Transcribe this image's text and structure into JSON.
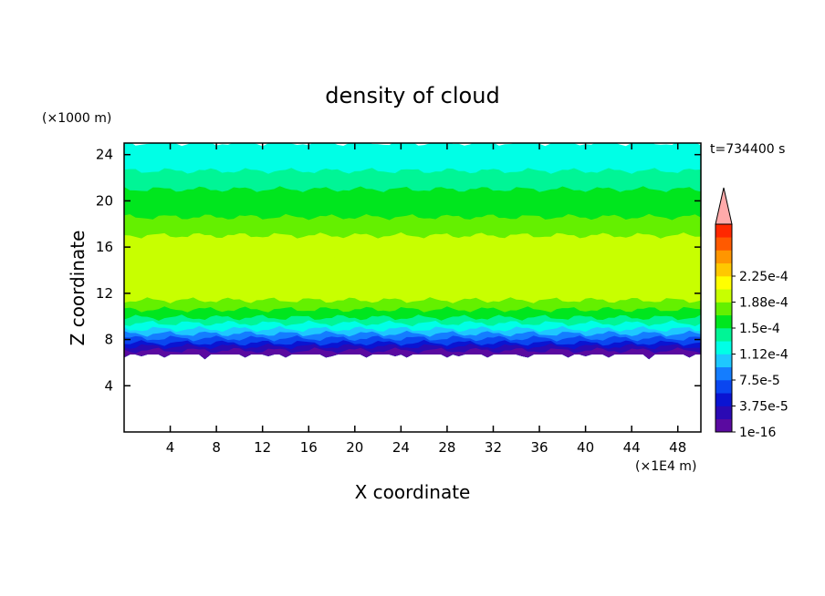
{
  "chart_data": {
    "type": "heatmap",
    "title": "density of cloud",
    "xlabel": "X coordinate",
    "ylabel": "Z coordinate",
    "x_unit": "(×1E4 m)",
    "y_unit": "(×1000 m)",
    "time_label": "t=734400 s",
    "xlim": [
      0,
      50
    ],
    "ylim": [
      0,
      25
    ],
    "x_ticks": [
      4,
      8,
      12,
      16,
      20,
      24,
      28,
      32,
      36,
      40,
      44,
      48
    ],
    "y_ticks": [
      4,
      8,
      12,
      16,
      20,
      24
    ],
    "colorbar": {
      "levels": [
        1e-16,
        1.875e-05,
        3.75e-05,
        5.625e-05,
        7.5e-05,
        9.375e-05,
        0.0001125,
        0.00013125,
        0.00015,
        0.00016875,
        0.0001875,
        0.00020625,
        0.000225,
        0.00024375
      ],
      "tick_labels": [
        "1e-16",
        "3.75e-5",
        "7.5e-5",
        "1.12e-4",
        "1.5e-4",
        "1.88e-4",
        "2.25e-4"
      ],
      "colors": [
        "#5a0aa0",
        "#2a0ab4",
        "#0a14d2",
        "#0a46f0",
        "#147dff",
        "#1ec8ff",
        "#00ffe6",
        "#00f596",
        "#00e61e",
        "#64f000",
        "#c8ff00",
        "#ffff00",
        "#ffc800",
        "#ff9600",
        "#ff5a00",
        "#ff2800"
      ],
      "overflow_color": "#ffaaaa"
    },
    "profile": {
      "note_z_levels": [
        6.8,
        7.3,
        7.6,
        8.0,
        8.4,
        8.8,
        9.3,
        9.8,
        10.4,
        11.2,
        17.2,
        18.6,
        21.0,
        22.6,
        25.0
      ],
      "band_values": [
        1e-16,
        2e-05,
        3.8e-05,
        5.6e-05,
        7.5e-05,
        9.4e-05,
        0.000112,
        0.000131,
        0.00015,
        0.000162,
        0.00015,
        0.000131,
        0.000112,
        9.4e-05
      ]
    }
  }
}
